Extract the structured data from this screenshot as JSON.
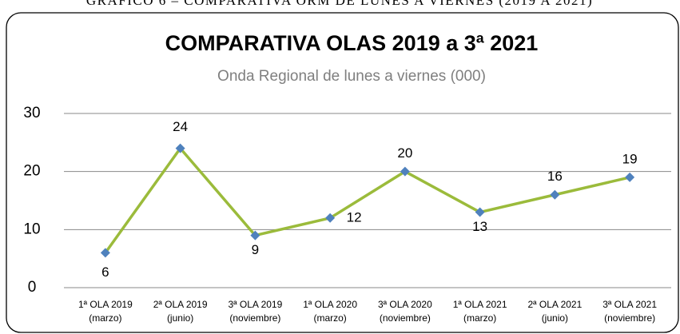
{
  "caption": "GRÁFICO 6 – COMPARATIVA ORM DE LUNES A VIERNES (2019 A 2021)",
  "chart_data": {
    "type": "line",
    "title": "COMPARATIVA OLAS 2019 a 3ª 2021",
    "subtitle": "Onda Regional de lunes a viernes (000)",
    "categories": [
      [
        "1ª OLA 2019",
        "(marzo)"
      ],
      [
        "2ª OLA 2019",
        "(junio)"
      ],
      [
        "3ª OLA 2019",
        "(noviembre)"
      ],
      [
        "1ª OLA 2020",
        "(marzo)"
      ],
      [
        "3ª OLA 2020",
        "(noviembre)"
      ],
      [
        "1ª OLA 2021",
        "(marzo)"
      ],
      [
        "2ª OLA 2021",
        "(junio)"
      ],
      [
        "3ª OLA 2021",
        "(noviembre)"
      ]
    ],
    "values": [
      6,
      24,
      9,
      12,
      20,
      13,
      16,
      19
    ],
    "color": "#9bbb3b",
    "marker_color": "#4f81bd",
    "ylim": [
      0,
      30
    ],
    "yticks": [
      0,
      10,
      20,
      30
    ],
    "grid": true
  }
}
